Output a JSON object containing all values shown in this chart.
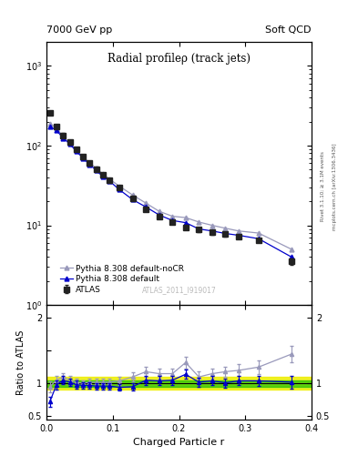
{
  "title_left": "7000 GeV pp",
  "title_right": "Soft QCD",
  "plot_title": "Radial profileρ (track jets)",
  "watermark": "ATLAS_2011_I919017",
  "right_label_top": "Rivet 3.1.10; ≥ 3.1M events",
  "right_label_bot": "mcplots.cern.ch [arXiv:1306.3436]",
  "xlabel": "Charged Particle r",
  "ylabel_ratio": "Ratio to ATLAS",
  "xlim": [
    0.0,
    0.4
  ],
  "ylim_main": [
    1.0,
    2000
  ],
  "ylim_ratio": [
    0.45,
    2.2
  ],
  "atlas_x": [
    0.005,
    0.015,
    0.025,
    0.035,
    0.045,
    0.055,
    0.065,
    0.075,
    0.085,
    0.095,
    0.11,
    0.13,
    0.15,
    0.17,
    0.19,
    0.21,
    0.23,
    0.25,
    0.27,
    0.29,
    0.32,
    0.37
  ],
  "atlas_y": [
    260,
    175,
    135,
    110,
    90,
    72,
    60,
    51,
    43,
    37,
    30,
    22,
    16,
    13,
    11,
    9.5,
    8.8,
    8.2,
    7.8,
    7.2,
    6.5,
    3.5
  ],
  "atlas_yerr": [
    15,
    10,
    8,
    7,
    5,
    4,
    3.5,
    3,
    2.5,
    2,
    1.8,
    1.3,
    1.0,
    0.8,
    0.7,
    0.6,
    0.5,
    0.5,
    0.5,
    0.4,
    0.4,
    0.3
  ],
  "pythia_def_x": [
    0.005,
    0.015,
    0.025,
    0.035,
    0.045,
    0.055,
    0.065,
    0.075,
    0.085,
    0.095,
    0.11,
    0.13,
    0.15,
    0.17,
    0.19,
    0.21,
    0.23,
    0.25,
    0.27,
    0.29,
    0.32,
    0.37
  ],
  "pythia_def_y": [
    175,
    155,
    125,
    105,
    85,
    70,
    58,
    49,
    41,
    36,
    28,
    21,
    17,
    13.5,
    11.5,
    10.8,
    9.0,
    8.5,
    7.9,
    7.5,
    6.8,
    4.0
  ],
  "pythia_nocr_x": [
    0.005,
    0.015,
    0.025,
    0.035,
    0.045,
    0.055,
    0.065,
    0.075,
    0.085,
    0.095,
    0.11,
    0.13,
    0.15,
    0.17,
    0.19,
    0.21,
    0.23,
    0.25,
    0.27,
    0.29,
    0.32,
    0.37
  ],
  "pythia_nocr_y": [
    190,
    165,
    130,
    107,
    88,
    72,
    61,
    52,
    44,
    38,
    31,
    24,
    19,
    15,
    13,
    12.5,
    11.0,
    10.0,
    9.2,
    8.5,
    8.0,
    5.0
  ],
  "ratio_def_y": [
    0.72,
    0.98,
    1.05,
    1.02,
    0.98,
    0.97,
    0.97,
    0.96,
    0.96,
    0.96,
    0.94,
    0.95,
    1.05,
    1.04,
    1.05,
    1.14,
    1.02,
    1.04,
    1.01,
    1.04,
    1.04,
    1.02
  ],
  "ratio_def_yerr": [
    0.08,
    0.07,
    0.06,
    0.06,
    0.06,
    0.05,
    0.05,
    0.05,
    0.05,
    0.05,
    0.05,
    0.06,
    0.07,
    0.07,
    0.07,
    0.07,
    0.07,
    0.07,
    0.07,
    0.07,
    0.08,
    0.1
  ],
  "ratio_nocr_y": [
    0.95,
    1.05,
    1.1,
    1.05,
    1.02,
    1.0,
    1.02,
    1.02,
    1.02,
    1.02,
    1.04,
    1.1,
    1.18,
    1.15,
    1.15,
    1.32,
    1.1,
    1.15,
    1.18,
    1.2,
    1.25,
    1.45
  ],
  "ratio_nocr_yerr": [
    0.08,
    0.07,
    0.06,
    0.06,
    0.06,
    0.05,
    0.05,
    0.05,
    0.05,
    0.05,
    0.06,
    0.07,
    0.08,
    0.08,
    0.08,
    0.09,
    0.08,
    0.08,
    0.08,
    0.09,
    0.1,
    0.12
  ],
  "green_band_lo": 0.95,
  "green_band_hi": 1.05,
  "yellow_band_lo": 0.9,
  "yellow_band_hi": 1.1,
  "color_atlas": "#222222",
  "color_pythia_def": "#0000cc",
  "color_pythia_nocr": "#9999bb",
  "color_green": "#00bb00",
  "color_yellow": "#eeee00",
  "background_color": "#ffffff"
}
